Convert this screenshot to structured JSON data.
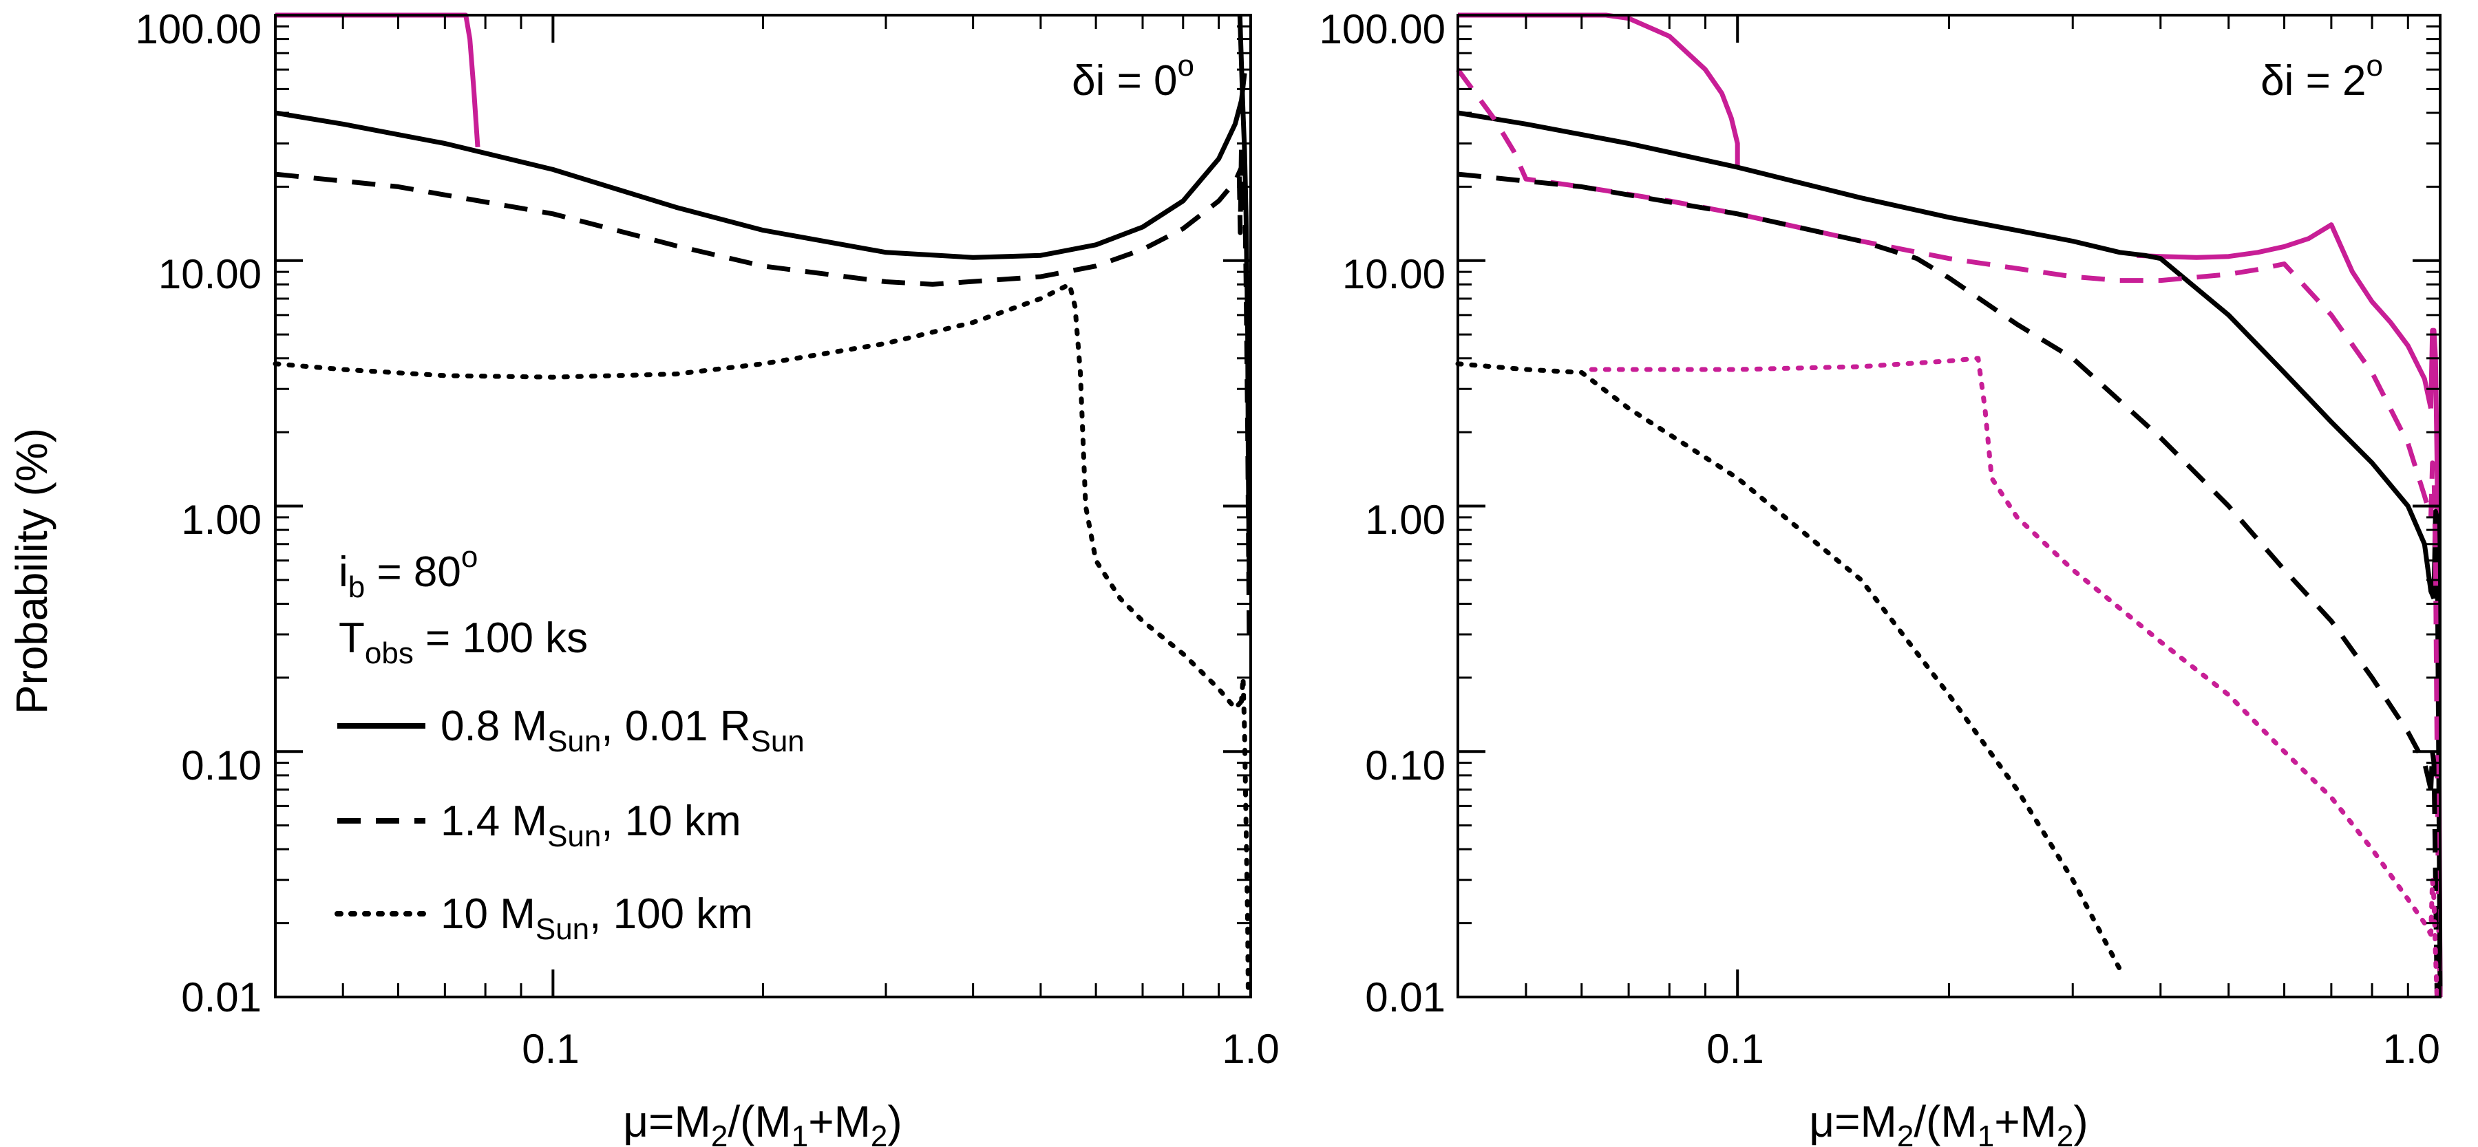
{
  "figure": {
    "ylabel": "Probability (%)",
    "ylabel_parts": {
      "main": "Probability",
      "unit": "(%)"
    },
    "xlabel_parts": {
      "mu": "μ",
      "eq": "=M",
      "sub2": "2",
      "open": "/(M",
      "sub1": "1",
      "plus": "+M",
      "sub3": "2",
      "close": ")"
    },
    "y_ticks": [
      0.01,
      0.1,
      1,
      10,
      100
    ],
    "y_tick_labels": [
      "0.01",
      "0.10",
      "1.00",
      "10.00",
      "100.00"
    ],
    "x_tick_labels": [
      "0.1",
      "1.0"
    ],
    "ylim": [
      0.01,
      100
    ],
    "xlim": [
      0.04,
      1.0
    ],
    "colors": {
      "black": "#000000",
      "magenta": "#c81e96"
    }
  },
  "annotations": {
    "ib": {
      "i": "i",
      "sub": "b",
      "eq": " = 80",
      "sup": "o"
    },
    "tobs": {
      "t": "T",
      "sub": "obs",
      "eq": " = 100 ks"
    }
  },
  "legend": [
    {
      "style": "solid",
      "m": "0.8 M",
      "msub": "Sun",
      "r": ", 0.01 R",
      "rsub": "Sun"
    },
    {
      "style": "dashed",
      "m": "1.4 M",
      "msub": "Sun",
      "r": ", 10 km",
      "rsub": ""
    },
    {
      "style": "dotted",
      "m": "10 M",
      "msub": "Sun",
      "r": ", 100 km",
      "rsub": ""
    }
  ],
  "chart_data": [
    {
      "type": "line",
      "title": "δi = 0°",
      "title_parts": {
        "main": "δi = 0",
        "sup": "o"
      },
      "xscale": "log",
      "yscale": "log",
      "xlim": [
        0.04,
        1.0
      ],
      "ylim": [
        0.01,
        100
      ],
      "xlabel": "μ=M2/(M1+M2)",
      "ylabel": "Probability (%)",
      "series": [
        {
          "name": "0.8 MSun, 0.01 RSun",
          "style": "solid",
          "color": "magenta",
          "x": [
            0.04,
            0.075,
            0.076,
            0.077,
            0.078
          ],
          "y": [
            100,
            100,
            80,
            50,
            29
          ]
        },
        {
          "name": "0.8 MSun, 0.01 RSun",
          "style": "solid",
          "color": "black",
          "x": [
            0.04,
            0.05,
            0.07,
            0.1,
            0.15,
            0.2,
            0.3,
            0.4,
            0.5,
            0.6,
            0.7,
            0.8,
            0.9,
            0.95,
            0.97,
            0.98
          ],
          "y": [
            40,
            36,
            30,
            23.5,
            16.5,
            13.3,
            10.8,
            10.3,
            10.5,
            11.6,
            13.7,
            17.5,
            26,
            36,
            45,
            58
          ]
        },
        {
          "name": "0.8 MSun, 0.01 RSun (μ≈1 branch)",
          "style": "solid",
          "color": "black",
          "x": [
            0.965,
            0.968,
            0.971,
            0.975,
            0.98,
            0.985,
            0.99,
            0.992,
            0.995
          ],
          "y": [
            100,
            75,
            58,
            40,
            28,
            15,
            5,
            1.5,
            0.5
          ]
        },
        {
          "name": "1.4 MSun, 10 km",
          "style": "dashed",
          "color": "black",
          "x": [
            0.04,
            0.06,
            0.1,
            0.15,
            0.2,
            0.3,
            0.35,
            0.5,
            0.6,
            0.7,
            0.8,
            0.9,
            0.95,
            0.97
          ],
          "y": [
            22.5,
            20,
            15.5,
            11.5,
            9.5,
            8.2,
            8.0,
            8.6,
            9.5,
            11.1,
            13.5,
            17.5,
            21,
            24
          ]
        },
        {
          "name": "1.4 MSun, 10 km (μ≈1 branch)",
          "style": "dashed",
          "color": "black",
          "x": [
            0.963,
            0.966,
            0.97,
            0.975,
            0.98,
            0.985,
            0.99,
            0.995
          ],
          "y": [
            22,
            13,
            30,
            18,
            22,
            8,
            2,
            0.3
          ]
        },
        {
          "name": "10 MSun, 100 km",
          "style": "dotted",
          "color": "black",
          "x": [
            0.04,
            0.05,
            0.07,
            0.1,
            0.15,
            0.2,
            0.3,
            0.4,
            0.5,
            0.55,
            0.56,
            0.57,
            0.58,
            0.6,
            0.65,
            0.7,
            0.8,
            0.9,
            0.95,
            0.97
          ],
          "y": [
            3.8,
            3.6,
            3.4,
            3.35,
            3.45,
            3.8,
            4.6,
            5.6,
            7.0,
            8.0,
            6.5,
            3.5,
            1.0,
            0.6,
            0.42,
            0.34,
            0.25,
            0.18,
            0.15,
            0.16
          ]
        },
        {
          "name": "10 MSun, 100 km (μ≈1 branch)",
          "style": "dotted",
          "color": "black",
          "x": [
            0.97,
            0.975,
            0.98,
            0.985,
            0.99,
            0.992
          ],
          "y": [
            0.16,
            0.2,
            0.12,
            0.05,
            0.02,
            0.01
          ]
        }
      ]
    },
    {
      "type": "line",
      "title": "δi = 2°",
      "title_parts": {
        "main": "δi = 2",
        "sup": "o"
      },
      "xscale": "log",
      "yscale": "log",
      "xlim": [
        0.04,
        1.0
      ],
      "ylim": [
        0.01,
        100
      ],
      "xlabel": "μ=M2/(M1+M2)",
      "ylabel": "Probability (%)",
      "series": [
        {
          "name": "0.8 MSun, 0.01 RSun",
          "style": "solid",
          "color": "magenta",
          "x": [
            0.04,
            0.065,
            0.07,
            0.08,
            0.09,
            0.095,
            0.098,
            0.1,
            0.1
          ],
          "y": [
            100,
            100,
            97,
            82,
            60,
            48,
            38,
            30,
            24
          ]
        },
        {
          "name": "0.8 MSun, 0.01 RSun",
          "style": "solid",
          "color": "magenta",
          "x": [
            0.37,
            0.4,
            0.45,
            0.5,
            0.55,
            0.6,
            0.65,
            0.7,
            0.75,
            0.8,
            0.85,
            0.9,
            0.95,
            0.97
          ],
          "y": [
            10.5,
            10.4,
            10.3,
            10.4,
            10.8,
            11.4,
            12.3,
            14.0,
            9.0,
            6.8,
            5.6,
            4.5,
            3.3,
            2.5
          ]
        },
        {
          "name": "0.8 MSun, 0.01 RSun (μ≈1 branch)",
          "style": "solid",
          "color": "magenta",
          "x": [
            0.97,
            0.975,
            0.98,
            0.985,
            0.99,
            0.995,
            1.0
          ],
          "y": [
            2.5,
            5.2,
            5.2,
            4.0,
            1.5,
            0.2,
            0.01
          ]
        },
        {
          "name": "0.8 MSun, 0.01 RSun",
          "style": "solid",
          "color": "black",
          "x": [
            0.04,
            0.05,
            0.07,
            0.1,
            0.15,
            0.2,
            0.3,
            0.35,
            0.38,
            0.4,
            0.5,
            0.6,
            0.7,
            0.8,
            0.9,
            0.95,
            0.97,
            0.98
          ],
          "y": [
            40,
            36,
            30,
            24,
            18,
            15,
            12,
            10.8,
            10.5,
            10.2,
            6.0,
            3.5,
            2.2,
            1.5,
            1.0,
            0.7,
            0.45,
            0.42
          ]
        },
        {
          "name": "0.8 MSun, 0.01 RSun (μ≈1 branch)",
          "style": "solid",
          "color": "black",
          "x": [
            0.98,
            0.985,
            0.99,
            0.995,
            1.0
          ],
          "y": [
            0.42,
            0.95,
            0.9,
            0.1,
            0.01
          ]
        },
        {
          "name": "1.4 MSun, 10 km",
          "style": "dashed",
          "color": "magenta",
          "x": [
            0.04,
            0.045,
            0.048,
            0.05,
            0.06,
            0.08,
            0.1,
            0.15,
            0.2,
            0.3,
            0.35,
            0.4,
            0.5,
            0.55,
            0.6,
            0.7,
            0.8,
            0.9,
            0.95,
            0.97
          ],
          "y": [
            60,
            38,
            28,
            21.5,
            20,
            17.5,
            15.5,
            12,
            10.2,
            8.6,
            8.3,
            8.3,
            8.8,
            9.2,
            9.7,
            6.0,
            3.5,
            1.8,
            1.1,
            0.9
          ]
        },
        {
          "name": "1.4 MSun, 10 km (μ≈1 branch)",
          "style": "dashed",
          "color": "magenta",
          "x": [
            0.97,
            0.975,
            0.98,
            0.985,
            0.99,
            0.995,
            1.0
          ],
          "y": [
            0.9,
            1.5,
            1.4,
            0.6,
            0.1,
            0.02,
            0.01
          ]
        },
        {
          "name": "1.4 MSun, 10 km",
          "style": "dashed",
          "color": "black",
          "x": [
            0.04,
            0.06,
            0.1,
            0.15,
            0.18,
            0.2,
            0.25,
            0.3,
            0.4,
            0.5,
            0.6,
            0.7,
            0.8,
            0.9,
            0.95,
            0.97
          ],
          "y": [
            22.5,
            20,
            15.5,
            12,
            10.2,
            8.5,
            5.5,
            4.0,
            1.9,
            1.0,
            0.55,
            0.34,
            0.2,
            0.12,
            0.09,
            0.07
          ]
        },
        {
          "name": "1.4 MSun, 10 km (μ≈1 branch)",
          "style": "dashed",
          "color": "black",
          "x": [
            0.97,
            0.975,
            0.98,
            0.985,
            0.99
          ],
          "y": [
            0.07,
            0.1,
            0.09,
            0.03,
            0.01
          ]
        },
        {
          "name": "10 MSun, 100 km",
          "style": "dotted",
          "color": "magenta",
          "x": [
            0.062,
            0.07,
            0.1,
            0.15,
            0.2,
            0.22,
            0.225,
            0.23,
            0.25,
            0.3,
            0.4,
            0.5,
            0.6,
            0.7,
            0.8,
            0.9,
            0.95,
            0.97
          ],
          "y": [
            3.6,
            3.6,
            3.6,
            3.7,
            3.9,
            4.0,
            2.5,
            1.3,
            0.9,
            0.55,
            0.28,
            0.17,
            0.1,
            0.065,
            0.04,
            0.025,
            0.02,
            0.018
          ]
        },
        {
          "name": "10 MSun, 100 km (μ≈1 branch)",
          "style": "dotted",
          "color": "magenta",
          "x": [
            0.97,
            0.975,
            0.98,
            0.985,
            0.99
          ],
          "y": [
            0.018,
            0.03,
            0.025,
            0.015,
            0.01
          ]
        },
        {
          "name": "10 MSun, 100 km",
          "style": "dotted",
          "color": "black",
          "x": [
            0.04,
            0.05,
            0.06,
            0.07,
            0.1,
            0.15,
            0.2,
            0.25,
            0.3,
            0.35
          ],
          "y": [
            3.8,
            3.6,
            3.5,
            2.5,
            1.3,
            0.5,
            0.17,
            0.07,
            0.03,
            0.013
          ]
        }
      ]
    }
  ]
}
